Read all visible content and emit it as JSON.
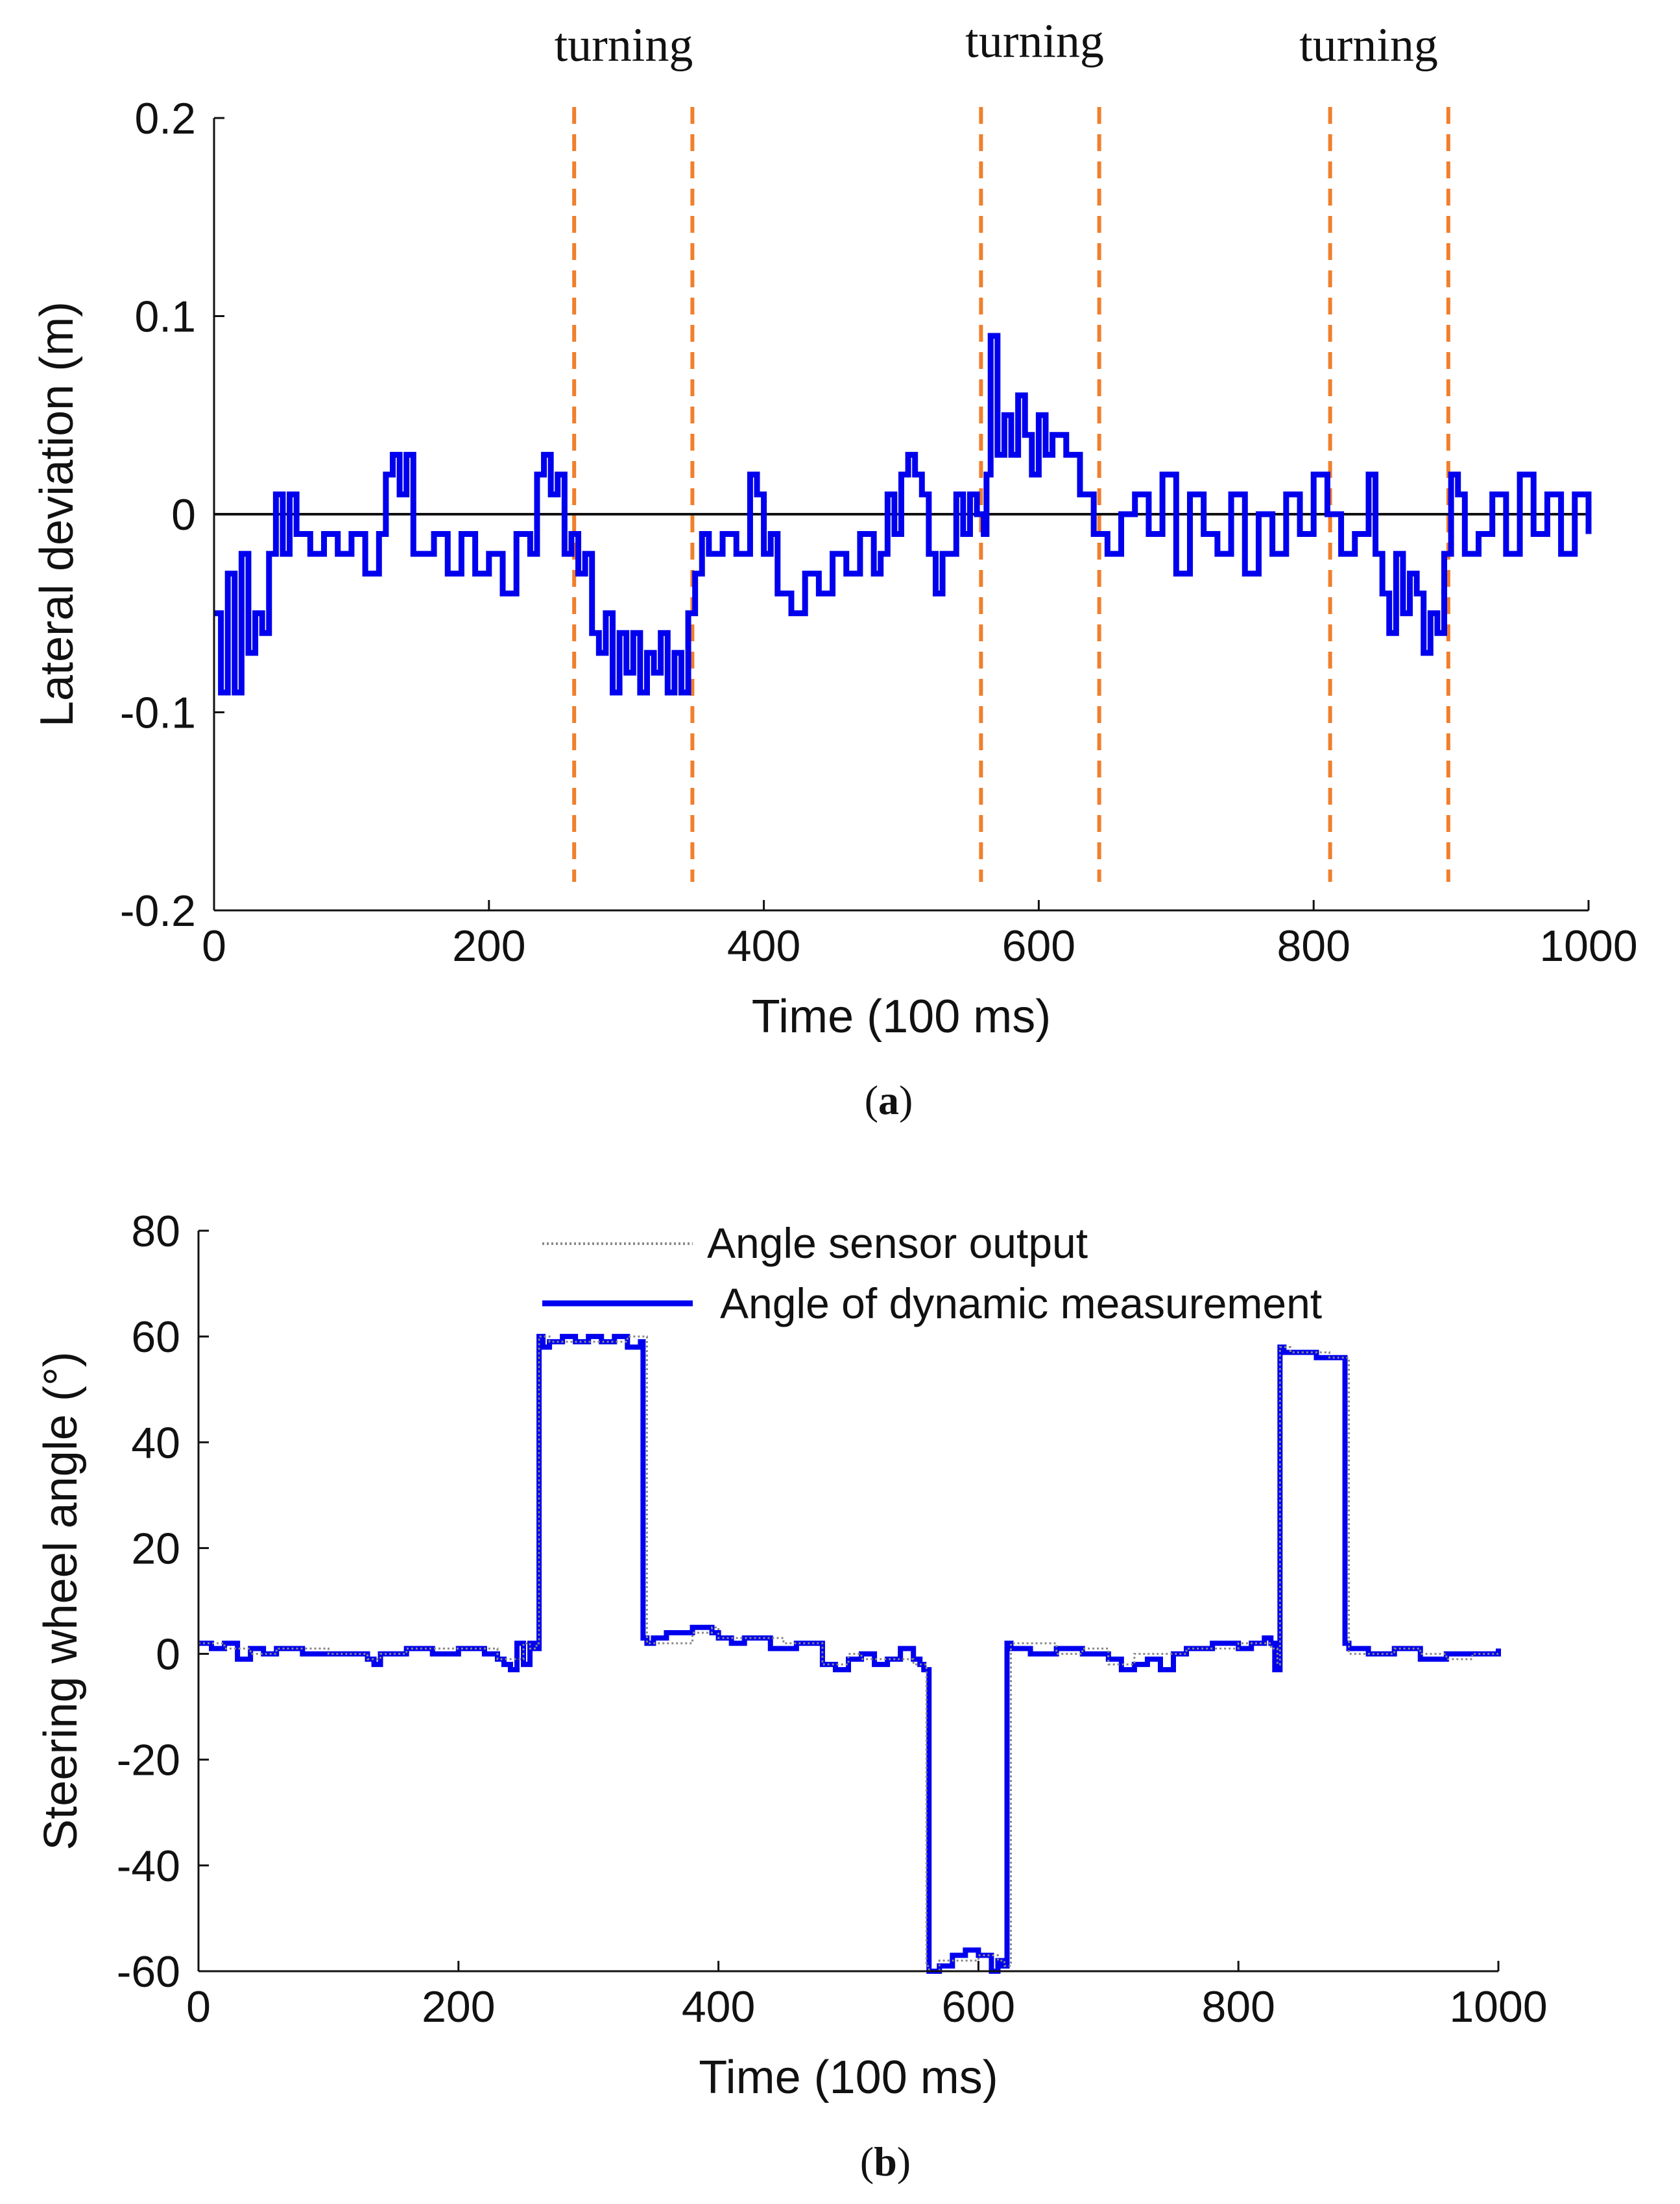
{
  "figure": {
    "caption_a": {
      "open": "(",
      "letter": "a",
      "close": ")"
    },
    "caption_b": {
      "open": "(",
      "letter": "b",
      "close": ")"
    }
  },
  "chart_data": [
    {
      "type": "line",
      "panel": "a",
      "xlabel": "Time (100 ms)",
      "ylabel": "Lateral deviation (m)",
      "xlim": [
        0,
        1000
      ],
      "ylim": [
        -0.2,
        0.2
      ],
      "xticks": [
        0,
        200,
        400,
        600,
        800,
        1000
      ],
      "yticks": [
        -0.2,
        -0.1,
        0,
        0.1,
        0.2
      ],
      "ytick_labels": [
        "-0.2",
        "-0.1",
        "0",
        "0.1",
        "0.2"
      ],
      "grid": false,
      "series": [
        {
          "name": "Lateral deviation",
          "color": "#0000ee",
          "x": [
            0,
            5,
            10,
            15,
            20,
            25,
            30,
            35,
            40,
            45,
            50,
            55,
            60,
            70,
            80,
            90,
            100,
            110,
            120,
            125,
            130,
            135,
            140,
            145,
            150,
            160,
            170,
            180,
            190,
            200,
            210,
            220,
            230,
            235,
            240,
            245,
            250,
            255,
            260,
            265,
            270,
            275,
            280,
            285,
            290,
            295,
            300,
            305,
            310,
            315,
            320,
            325,
            330,
            335,
            340,
            345,
            350,
            355,
            360,
            370,
            380,
            390,
            395,
            400,
            405,
            410,
            420,
            430,
            440,
            450,
            460,
            470,
            480,
            485,
            490,
            495,
            500,
            505,
            510,
            515,
            520,
            525,
            530,
            540,
            545,
            550,
            555,
            560,
            562,
            565,
            570,
            575,
            580,
            585,
            590,
            595,
            600,
            605,
            610,
            620,
            630,
            640,
            650,
            660,
            670,
            680,
            690,
            700,
            710,
            720,
            730,
            740,
            750,
            760,
            770,
            780,
            790,
            800,
            810,
            820,
            830,
            840,
            845,
            850,
            855,
            860,
            865,
            870,
            875,
            880,
            885,
            890,
            895,
            900,
            905,
            910,
            920,
            930,
            940,
            950,
            960,
            970,
            980,
            990,
            1000
          ],
          "values": [
            -0.05,
            -0.09,
            -0.03,
            -0.09,
            -0.02,
            -0.07,
            -0.05,
            -0.06,
            -0.02,
            0.01,
            -0.02,
            0.01,
            -0.01,
            -0.02,
            -0.01,
            -0.02,
            -0.01,
            -0.03,
            -0.01,
            0.02,
            0.03,
            0.01,
            0.03,
            -0.02,
            -0.02,
            -0.01,
            -0.03,
            -0.01,
            -0.03,
            -0.02,
            -0.04,
            -0.01,
            -0.02,
            0.02,
            0.03,
            0.01,
            0.02,
            -0.02,
            -0.01,
            -0.03,
            -0.02,
            -0.06,
            -0.07,
            -0.05,
            -0.09,
            -0.06,
            -0.08,
            -0.06,
            -0.09,
            -0.07,
            -0.08,
            -0.06,
            -0.09,
            -0.07,
            -0.09,
            -0.05,
            -0.03,
            -0.01,
            -0.02,
            -0.01,
            -0.02,
            0.02,
            0.01,
            -0.02,
            -0.01,
            -0.04,
            -0.05,
            -0.03,
            -0.04,
            -0.02,
            -0.03,
            -0.01,
            -0.03,
            -0.02,
            0.01,
            -0.01,
            0.02,
            0.03,
            0.02,
            0.01,
            -0.02,
            -0.04,
            -0.02,
            0.01,
            -0.01,
            0.01,
            0.0,
            -0.01,
            0.02,
            0.09,
            0.03,
            0.05,
            0.03,
            0.06,
            0.04,
            0.02,
            0.05,
            0.03,
            0.04,
            0.03,
            0.01,
            -0.01,
            -0.02,
            0.0,
            0.01,
            -0.01,
            0.02,
            -0.03,
            0.01,
            -0.01,
            -0.02,
            0.01,
            -0.03,
            0.0,
            -0.02,
            0.01,
            -0.01,
            0.02,
            0.0,
            -0.02,
            -0.01,
            0.02,
            -0.02,
            -0.04,
            -0.06,
            -0.02,
            -0.05,
            -0.03,
            -0.04,
            -0.07,
            -0.05,
            -0.06,
            -0.02,
            0.02,
            0.01,
            -0.02,
            -0.01,
            0.01,
            -0.02,
            0.02,
            -0.01,
            0.01,
            -0.02,
            0.01,
            -0.01
          ]
        }
      ],
      "reference_line": {
        "y": 0
      },
      "marker_lines": [
        {
          "x": 262,
          "color": "#f07f2c"
        },
        {
          "x": 348,
          "color": "#f07f2c"
        },
        {
          "x": 558,
          "color": "#f07f2c"
        },
        {
          "x": 644,
          "color": "#f07f2c"
        },
        {
          "x": 812,
          "color": "#f07f2c"
        },
        {
          "x": 898,
          "color": "#f07f2c"
        }
      ],
      "annotations": [
        {
          "text": "turning",
          "x": 298
        },
        {
          "text": "turning",
          "x": 597
        },
        {
          "text": "turning",
          "x": 840
        }
      ]
    },
    {
      "type": "line",
      "panel": "b",
      "xlabel": "Time (100 ms)",
      "ylabel": "Steering wheel angle (°)",
      "xlim": [
        0,
        1000
      ],
      "ylim": [
        -60,
        80
      ],
      "xticks": [
        0,
        200,
        400,
        600,
        800,
        1000
      ],
      "yticks": [
        -60,
        -40,
        -20,
        0,
        20,
        40,
        60,
        80
      ],
      "ytick_labels": [
        "-60",
        "-40",
        "-20",
        "0",
        "20",
        "40",
        "60",
        "80"
      ],
      "grid": false,
      "legend_position": "top-center",
      "series": [
        {
          "name": "Angle sensor output",
          "color": "#888888",
          "style": "dotted",
          "x": [
            0,
            20,
            40,
            60,
            100,
            130,
            140,
            160,
            200,
            230,
            240,
            250,
            255,
            260,
            262,
            270,
            300,
            330,
            340,
            345,
            380,
            395,
            400,
            450,
            480,
            500,
            510,
            550,
            560,
            562,
            570,
            600,
            615,
            620,
            625,
            660,
            680,
            700,
            720,
            760,
            800,
            825,
            830,
            832,
            840,
            870,
            880,
            885,
            920,
            940,
            960,
            980,
            1000
          ],
          "values": [
            2,
            1,
            0,
            1,
            0,
            -1,
            0,
            1,
            1,
            -1,
            -1,
            2,
            1,
            2,
            60,
            59,
            59,
            60,
            60,
            2,
            4,
            5,
            3,
            2,
            -2,
            0,
            -1,
            -2,
            -59,
            -60,
            -58,
            -57,
            -58,
            -59,
            2,
            0,
            1,
            -2,
            0,
            1,
            2,
            1,
            -2,
            58,
            57,
            56,
            56,
            0,
            1,
            0,
            -1,
            0,
            0
          ]
        },
        {
          "name": "Angle of dynamic measurement",
          "color": "#0000ee",
          "style": "solid",
          "x": [
            0,
            10,
            20,
            30,
            40,
            50,
            60,
            80,
            100,
            120,
            130,
            135,
            140,
            160,
            180,
            200,
            220,
            230,
            235,
            240,
            245,
            250,
            255,
            258,
            262,
            265,
            270,
            280,
            290,
            300,
            310,
            320,
            330,
            340,
            342,
            345,
            350,
            360,
            370,
            380,
            390,
            395,
            400,
            410,
            420,
            440,
            460,
            480,
            490,
            500,
            510,
            520,
            530,
            540,
            550,
            555,
            558,
            562,
            570,
            580,
            590,
            600,
            610,
            615,
            618,
            622,
            625,
            640,
            660,
            680,
            700,
            710,
            720,
            730,
            740,
            750,
            760,
            780,
            800,
            810,
            820,
            825,
            828,
            832,
            835,
            840,
            860,
            870,
            880,
            882,
            885,
            900,
            920,
            940,
            960,
            980,
            1000
          ],
          "values": [
            2,
            1,
            2,
            -1,
            1,
            0,
            1,
            0,
            0,
            0,
            -1,
            -2,
            0,
            1,
            0,
            1,
            0,
            -1,
            -2,
            -3,
            2,
            -2,
            2,
            1,
            60,
            58,
            59,
            60,
            59,
            60,
            59,
            60,
            58,
            59,
            3,
            2,
            3,
            4,
            4,
            5,
            5,
            4,
            3,
            2,
            3,
            1,
            2,
            -2,
            -3,
            -1,
            0,
            -2,
            -1,
            1,
            -1,
            -2,
            -3,
            -60,
            -59,
            -57,
            -56,
            -57,
            -60,
            -58,
            -59,
            2,
            1,
            0,
            1,
            0,
            -1,
            -3,
            -2,
            -1,
            -3,
            0,
            1,
            2,
            1,
            2,
            3,
            2,
            -3,
            58,
            57,
            57,
            56,
            56,
            56,
            2,
            1,
            0,
            1,
            -1,
            0,
            0,
            1
          ]
        }
      ]
    }
  ]
}
